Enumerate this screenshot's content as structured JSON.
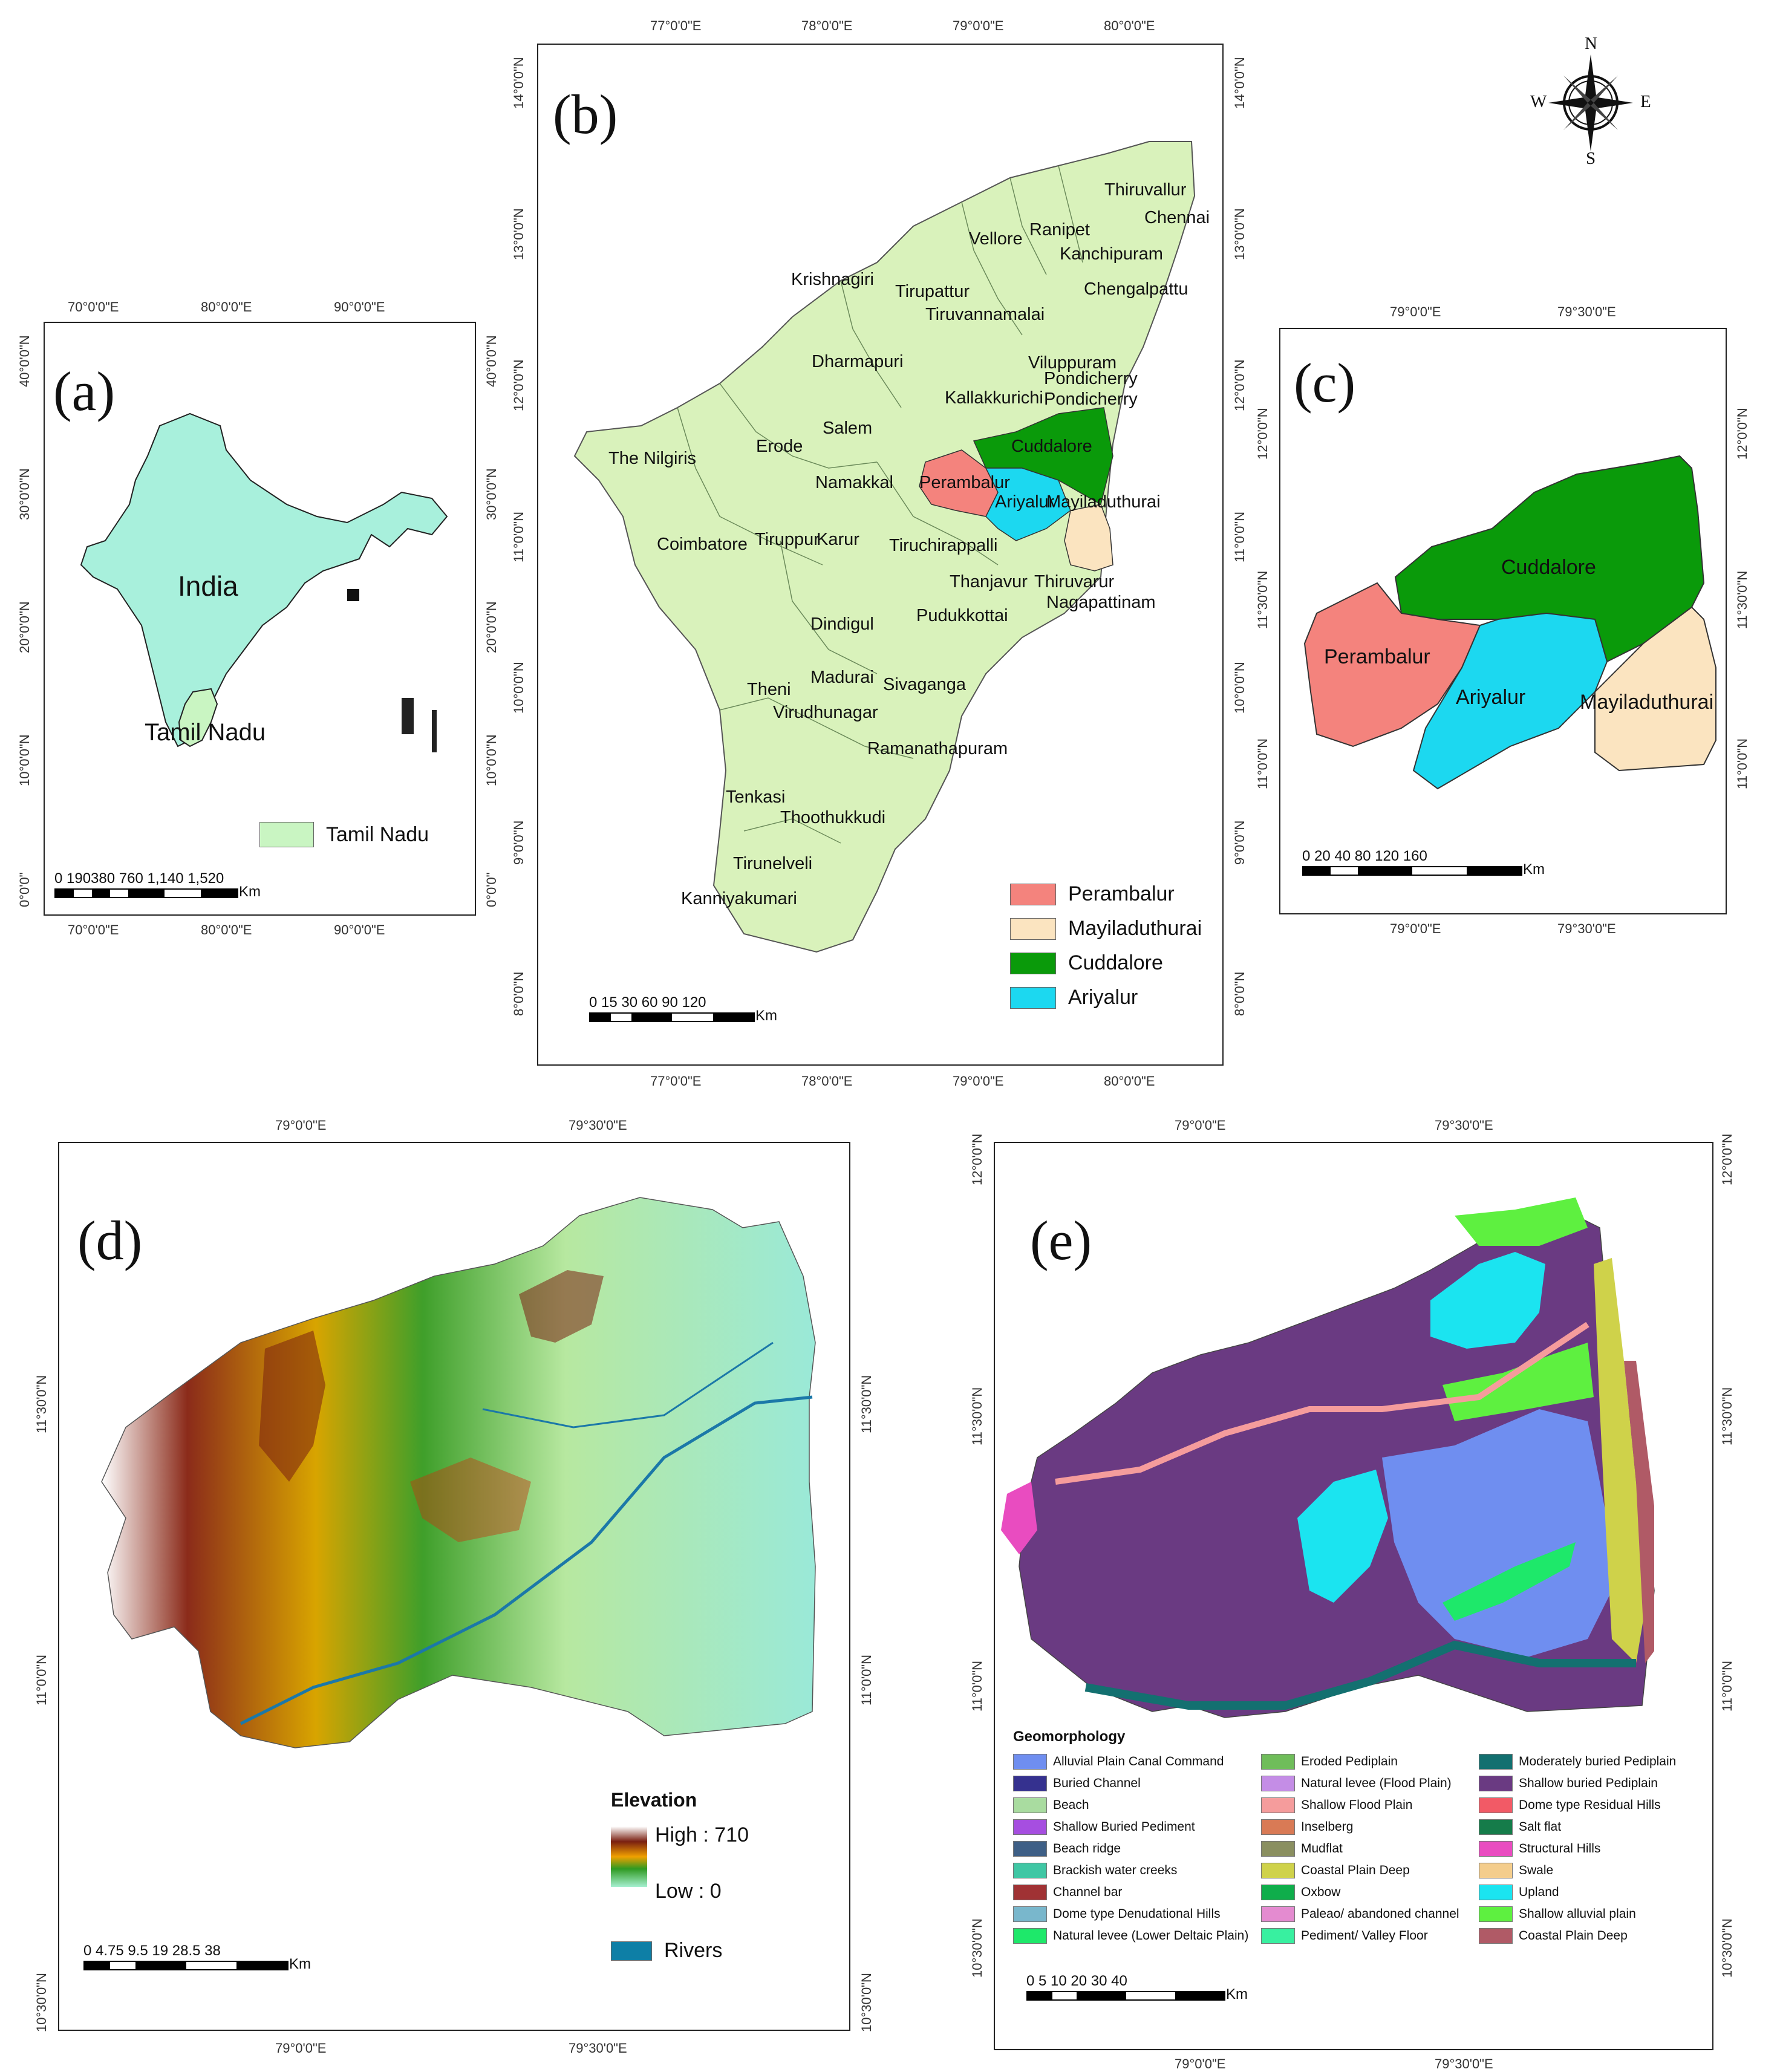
{
  "panel_a": {
    "label": "(a)",
    "top_coords": [
      "70°0'0\"E",
      "80°0'0\"E",
      "90°0'0\"E"
    ],
    "bottom_coords": [
      "70°0'0\"E",
      "80°0'0\"E",
      "90°0'0\"E"
    ],
    "left_coords": [
      "40°0'0\"N",
      "30°0'0\"N",
      "20°0'0\"N",
      "10°0'0\"N",
      "0°0'0\""
    ],
    "right_coords": [
      "40°0'0\"N",
      "30°0'0\"N",
      "20°0'0\"N",
      "10°0'0\"N",
      "0°0'0\""
    ],
    "india_label": "India",
    "tn_label": "Tamil Nadu",
    "legend_label": "Tamil Nadu",
    "scale_numbers": "0 190380    760  1,140 1,520",
    "scale_unit": "Km",
    "colors": {
      "india": "#a8f0dc",
      "tn": "#c9f5c2"
    }
  },
  "panel_b": {
    "label": "(b)",
    "top_coords": [
      "77°0'0\"E",
      "78°0'0\"E",
      "79°0'0\"E",
      "80°0'0\"E"
    ],
    "bottom_coords": [
      "77°0'0\"E",
      "78°0'0\"E",
      "79°0'0\"E",
      "80°0'0\"E"
    ],
    "left_coords": [
      "14°0'0\"N",
      "13°0'0\"N",
      "12°0'0\"N",
      "11°0'0\"N",
      "10°0'0\"N",
      "9°0'0\"N",
      "8°0'0\"N"
    ],
    "right_coords": [
      "14°0'0\"N",
      "13°0'0\"N",
      "12°0'0\"N",
      "11°0'0\"N",
      "10°0'0\"N",
      "9°0'0\"N",
      "8°0'0\"N"
    ],
    "districts": [
      "Thiruvallur",
      "Chennai",
      "Ranipet",
      "Vellore",
      "Kanchipuram",
      "Krishnagiri",
      "Tirupattur",
      "Chengalpattu",
      "Tiruvannamalai",
      "Dharmapuri",
      "Viluppuram",
      "Pondicherry",
      "Kallakkurichi",
      "Pondicherry",
      "Salem",
      "Erode",
      "The Nilgiris",
      "Cuddalore",
      "Namakkal",
      "Perambalur",
      "Ariyalur",
      "Mayiladuthurai",
      "Coimbatore",
      "Tiruppur",
      "Karur",
      "Tiruchirappalli",
      "Thanjavur",
      "Thiruvarur",
      "Nagapattinam",
      "Pudukkottai",
      "Dindigul",
      "Theni",
      "Madurai",
      "Sivaganga",
      "Virudhunagar",
      "Ramanathapuram",
      "Tenkasi",
      "Thoothukkudi",
      "Tirunelveli",
      "Kanniyakumari"
    ],
    "legend": [
      {
        "label": "Perambalur",
        "color": "#f4837d"
      },
      {
        "label": "Mayiladuthurai",
        "color": "#fbe4c0"
      },
      {
        "label": "Cuddalore",
        "color": "#0a9a0a"
      },
      {
        "label": "Ariyalur",
        "color": "#1cd8f0"
      }
    ],
    "scale_numbers": "0  15 30      60      90     120",
    "scale_unit": "Km",
    "land_color": "#d9f2bb"
  },
  "compass": {
    "n": "N",
    "s": "S",
    "e": "E",
    "w": "W"
  },
  "panel_c": {
    "label": "(c)",
    "top_coords": [
      "79°0'0\"E",
      "79°30'0\"E"
    ],
    "bottom_coords": [
      "79°0'0\"E",
      "79°30'0\"E"
    ],
    "left_coords": [
      "12°0'0\"N",
      "11°30'0\"N",
      "11°0'0\"N"
    ],
    "right_coords": [
      "12°0'0\"N",
      "11°30'0\"N",
      "11°0'0\"N"
    ],
    "labels": [
      "Cuddalore",
      "Perambalur",
      "Ariyalur",
      "Mayiladuthurai"
    ],
    "scale_numbers": "0   20  40         80        120       160",
    "scale_unit": "Km"
  },
  "panel_d": {
    "label": "(d)",
    "top_coords": [
      "79°0'0\"E",
      "79°30'0\"E"
    ],
    "bottom_coords": [
      "79°0'0\"E",
      "79°30'0\"E"
    ],
    "left_coords": [
      "11°30'0\"N",
      "11°0'0\"N",
      "10°30'0\"N"
    ],
    "right_coords": [
      "11°30'0\"N",
      "11°0'0\"N",
      "10°30'0\"N"
    ],
    "legend_title": "Elevation",
    "high_label": "High : 710",
    "low_label": "Low : 0",
    "rivers_label": "Rivers",
    "scale_numbers": "0 4.75 9.5      19       28.5      38",
    "scale_unit": "Km"
  },
  "panel_e": {
    "label": "(e)",
    "top_coords": [
      "79°0'0\"E",
      "79°30'0\"E"
    ],
    "bottom_coords": [
      "79°0'0\"E",
      "79°30'0\"E"
    ],
    "left_coords": [
      "12°0'0\"N",
      "11°30'0\"N",
      "11°0'0\"N",
      "10°30'0\"N"
    ],
    "right_coords": [
      "12°0'0\"N",
      "11°30'0\"N",
      "11°0'0\"N",
      "10°30'0\"N"
    ],
    "legend_title": "Geomorphology",
    "legend": [
      {
        "label": "Alluvial Plain Canal Command",
        "color": "#6f8ef0"
      },
      {
        "label": "Buried Channel",
        "color": "#35318f"
      },
      {
        "label": "Beach",
        "color": "#a9dca0"
      },
      {
        "label": "Shallow Buried Pediment",
        "color": "#a64ee0"
      },
      {
        "label": "Beach ridge",
        "color": "#3e5f86"
      },
      {
        "label": "Brackish water creeks",
        "color": "#3fc7a4"
      },
      {
        "label": "Channel bar",
        "color": "#a03234"
      },
      {
        "label": "Dome type Denudational Hills",
        "color": "#79b7cc"
      },
      {
        "label": "Natural levee (Lower Deltaic Plain)",
        "color": "#1ee86a"
      },
      {
        "label": "Eroded Pediplain",
        "color": "#6fbd5a"
      },
      {
        "label": "Natural levee (Flood Plain)",
        "color": "#c48de6"
      },
      {
        "label": "Shallow Flood Plain",
        "color": "#f59c9c"
      },
      {
        "label": "Inselberg",
        "color": "#d97a55"
      },
      {
        "label": "Mudflat",
        "color": "#8a8f60"
      },
      {
        "label": "Coastal Plain Deep",
        "color": "#cfd24a"
      },
      {
        "label": "Oxbow",
        "color": "#0fae4b"
      },
      {
        "label": "Paleao/ abandoned channel",
        "color": "#e48bd0"
      },
      {
        "label": "Pediment/ Valley Floor",
        "color": "#38f0a0"
      },
      {
        "label": "Moderately buried Pediplain",
        "color": "#137070"
      },
      {
        "label": "Shallow buried Pediplain",
        "color": "#6a3a82"
      },
      {
        "label": "Dome type Residual Hills",
        "color": "#f25a66"
      },
      {
        "label": "Salt flat",
        "color": "#157c4a"
      },
      {
        "label": "Structural Hills",
        "color": "#e94cc0"
      },
      {
        "label": "Swale",
        "color": "#f4cd8c"
      },
      {
        "label": "Upland",
        "color": "#1be4f0"
      },
      {
        "label": "Shallow alluvial plain",
        "color": "#5ef040"
      },
      {
        "label": "Coastal Plain Deep",
        "color": "#b05a66"
      }
    ],
    "scale_numbers": "0    5   10        20        30        40",
    "scale_unit": "Km"
  }
}
